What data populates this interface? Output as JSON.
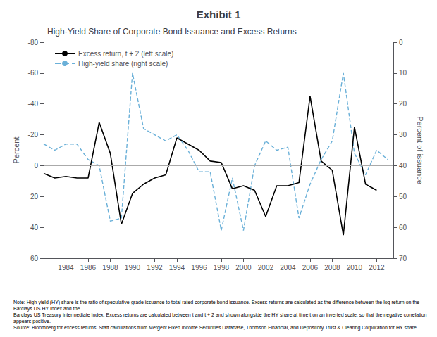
{
  "chart_data": {
    "type": "line",
    "title": "Exhibit 1",
    "subtitle": "High-Yield Share of Corporate Bond Issuance and Excess Returns",
    "ylabel": "Percent",
    "y2label": "Percent of issuance",
    "notes": [
      "Note: High-yield (HY) share is the ratio of speculative-grade issuance to total rated corporate bond issuance. Excess returns are calculated as the difference between the log return on the Barclays US HY Index and the",
      "Barclays US Treasury Intermediate Index. Excess returns are calculated between t and t + 2 and shown alongside the HY share at time t on an inverted scale, so that the negative correlation appears positive.",
      "Source: Bloomberg for excess returns. Staff calculations from Mergent Fixed Income Securities Database, Thomson Financial, and Depository Trust & Clearing Corporation for HY share."
    ],
    "xlim": [
      1982.0,
      2013.5
    ],
    "xticks": [
      1984,
      1986,
      1988,
      1990,
      1992,
      1994,
      1996,
      1998,
      2000,
      2002,
      2004,
      2006,
      2008,
      2010,
      2012
    ],
    "ylim": [
      60,
      -80
    ],
    "yticks": [
      -80,
      -60,
      -40,
      -20,
      0,
      20,
      40,
      60
    ],
    "y2lim": [
      70,
      0
    ],
    "y2ticks": [
      0,
      10,
      20,
      30,
      40,
      50,
      60,
      70
    ],
    "grid": false,
    "legend": "upper left",
    "reference_lines": [
      {
        "axis": "y",
        "value": 0,
        "color": "#aaaaaa"
      }
    ],
    "series": [
      {
        "name": "Excess return, t + 2 (left scale)",
        "color": "#000000",
        "line_style": "solid",
        "axis": "y",
        "x": [
          1982,
          1983,
          1984,
          1985,
          1986,
          1987,
          1988,
          1989,
          1990,
          1991,
          1992,
          1993,
          1994,
          1995,
          1996,
          1997,
          1998,
          1999,
          2000,
          2001,
          2002,
          2003,
          2004,
          2005,
          2006,
          2007,
          2008,
          2009,
          2010,
          2011,
          2012
        ],
        "values": [
          5,
          8,
          7,
          8,
          8,
          -28,
          -8,
          38,
          18,
          12,
          8,
          6,
          -18,
          -14,
          -10,
          -3,
          -2,
          15,
          13,
          16,
          33,
          13,
          13,
          11,
          -45,
          -3,
          3,
          45,
          -25,
          12,
          16
        ]
      },
      {
        "name": "High-yield share (right scale)",
        "color": "#6ab0d8",
        "line_style": "dashed",
        "axis": "y2",
        "x": [
          1982,
          1983,
          1984,
          1985,
          1986,
          1987,
          1988,
          1989,
          1990,
          1991,
          1992,
          1993,
          1994,
          1995,
          1996,
          1997,
          1998,
          1999,
          2000,
          2001,
          2002,
          2003,
          2004,
          2005,
          2006,
          2007,
          2008,
          2009,
          2010,
          2011,
          2012,
          2013
        ],
        "values": [
          33,
          35,
          33,
          33,
          38,
          40,
          58,
          57,
          10,
          28,
          30,
          32,
          30,
          35,
          42,
          42,
          61,
          44,
          61,
          40,
          32,
          35,
          34,
          57,
          46,
          38,
          32,
          10,
          36,
          43,
          35,
          38
        ]
      }
    ]
  }
}
